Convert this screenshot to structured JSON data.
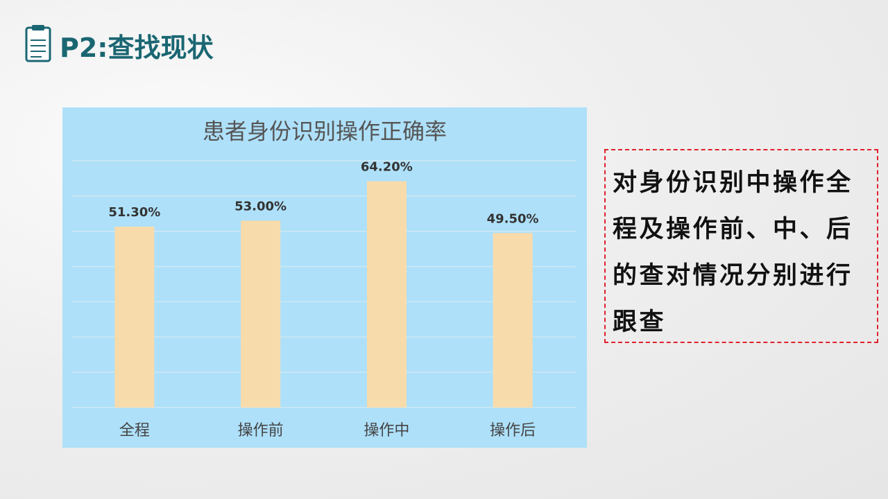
{
  "header": {
    "title": "P2:查找现状"
  },
  "chart_data": {
    "type": "bar",
    "title": "患者身份识别操作正确率",
    "categories": [
      "全程",
      "操作前",
      "操作中",
      "操作后"
    ],
    "values": [
      51.3,
      53.0,
      64.2,
      49.5
    ],
    "value_labels": [
      "51.30%",
      "53.00%",
      "64.20%",
      "49.50%"
    ],
    "color": "#f8dbab",
    "ylim": [
      0,
      70
    ],
    "yticks": [
      0,
      10,
      20,
      30,
      40,
      50,
      60,
      70
    ],
    "grid": true
  },
  "note": {
    "text": "对身份识别中操作全程及操作前、中、后的查对情况分别进行跟查"
  }
}
